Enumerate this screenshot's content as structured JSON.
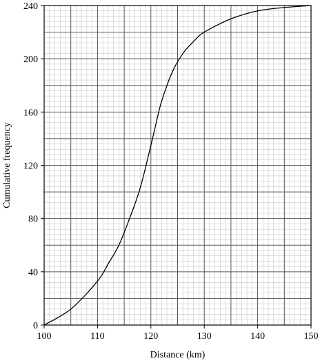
{
  "chart_data": {
    "type": "line",
    "title": "",
    "xlabel": "Distance (km)",
    "ylabel": "Cumulative frequency",
    "xlim": [
      100,
      150
    ],
    "ylim": [
      0,
      240
    ],
    "x_ticks": [
      100,
      110,
      120,
      130,
      140,
      150
    ],
    "y_ticks": [
      0,
      40,
      80,
      120,
      160,
      200,
      240
    ],
    "grid": true,
    "legend": "none",
    "line_color": "#000000",
    "grid_major_color": "#555555",
    "grid_minor_color": "#bdbdbd",
    "series": [
      {
        "x": [
          100,
          105,
          110,
          112,
          114,
          116,
          118,
          120,
          121,
          122,
          124,
          126,
          128,
          130,
          135,
          140,
          145,
          150
        ],
        "y": [
          0,
          12,
          33,
          46,
          60,
          80,
          103,
          135,
          152,
          168,
          190,
          204,
          213,
          220,
          230,
          236,
          238.5,
          240
        ]
      }
    ]
  }
}
